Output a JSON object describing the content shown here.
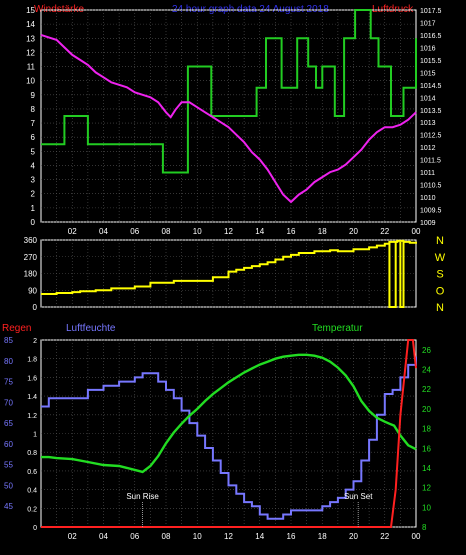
{
  "colors": {
    "background": "#000000",
    "frame": "#ffffff",
    "grid": "#555555",
    "tick_label": "#ffffff",
    "wind_speed": "#22cc22",
    "pressure": "#ee22ee",
    "direction": "#ffff00",
    "rain": "#ff2020",
    "humidity": "#7777ff",
    "temperature": "#22dd22",
    "title_left": "#ff2222",
    "title_center": "#3333ee",
    "title_right": "#ff2222"
  },
  "header": {
    "left": "Windstärke",
    "center": "24 hour graph data  24 August  2018",
    "right": "Luftdruck"
  },
  "x_ticks": [
    "02",
    "04",
    "06",
    "08",
    "10",
    "12",
    "14",
    "16",
    "18",
    "20",
    "22",
    "00"
  ],
  "chart_data": [
    {
      "id": "wind-pressure",
      "type": "line",
      "x_range": [
        0,
        24
      ],
      "left_axis": {
        "label": "Windstärke",
        "ylim": [
          0,
          15
        ],
        "ticks": [
          "0",
          "1",
          "2",
          "3",
          "4",
          "5",
          "6",
          "7",
          "8",
          "9",
          "10",
          "11",
          "12",
          "13",
          "14",
          "15"
        ]
      },
      "right_axis": {
        "label": "Luftdruck",
        "ylim": [
          1009,
          1017.5
        ],
        "ticks": [
          "1009",
          "1009.5",
          "1010",
          "1010.5",
          "1011",
          "1011.5",
          "1012",
          "1012.5",
          "1013",
          "1013.5",
          "1014",
          "1014.5",
          "1015",
          "1015.5",
          "1016",
          "1016.5",
          "1017",
          "1017.5"
        ]
      },
      "series": [
        {
          "name": "Windstärke",
          "axis": "left",
          "style": "step",
          "x": [
            0,
            1.5,
            3,
            4,
            5,
            6,
            7,
            7.8,
            9.4,
            10.9,
            12.5,
            13.8,
            14.4,
            15.4,
            16.4,
            17.1,
            17.6,
            18,
            18.8,
            19.4,
            20.1,
            21.1,
            21.6,
            22.4,
            23.2,
            24
          ],
          "y": [
            5.5,
            7.5,
            5.5,
            5.5,
            5.5,
            5.5,
            5.5,
            3.5,
            11,
            7.5,
            7.5,
            9.5,
            13,
            9.5,
            13,
            11,
            9.5,
            11,
            7.5,
            13,
            15,
            13,
            11,
            7.5,
            9.5,
            13
          ]
        },
        {
          "name": "Luftdruck",
          "axis": "right",
          "style": "line",
          "x": [
            0,
            0.5,
            1,
            1.5,
            2,
            2.5,
            3,
            3.5,
            4,
            4.5,
            5,
            5.5,
            6,
            6.5,
            7,
            7.5,
            8,
            8.3,
            8.6,
            9,
            9.5,
            10,
            10.5,
            11,
            11.5,
            12,
            12.5,
            13,
            13.5,
            14,
            14.5,
            15,
            15.5,
            16,
            16.5,
            17,
            17.5,
            18,
            18.5,
            19,
            19.5,
            20,
            20.5,
            21,
            21.5,
            22,
            22.5,
            23,
            23.5,
            24
          ],
          "y": [
            1016.5,
            1016.4,
            1016.3,
            1016.0,
            1015.7,
            1015.5,
            1015.3,
            1015.0,
            1014.8,
            1014.6,
            1014.5,
            1014.4,
            1014.2,
            1014.1,
            1014.0,
            1013.8,
            1013.4,
            1013.2,
            1013.5,
            1013.8,
            1013.8,
            1013.6,
            1013.4,
            1013.2,
            1013.0,
            1012.8,
            1012.5,
            1012.2,
            1011.8,
            1011.5,
            1011.1,
            1010.6,
            1010.1,
            1009.8,
            1010.1,
            1010.3,
            1010.6,
            1010.8,
            1011.0,
            1011.1,
            1011.3,
            1011.6,
            1011.9,
            1012.3,
            1012.6,
            1012.8,
            1012.8,
            1012.9,
            1013.1,
            1013.4
          ]
        }
      ]
    },
    {
      "id": "wind-direction",
      "type": "line",
      "x_range": [
        0,
        24
      ],
      "left_axis": {
        "ylim": [
          0,
          360
        ],
        "ticks": [
          "0",
          "90",
          "180",
          "270",
          "360"
        ]
      },
      "right_axis": {
        "ylim": [
          0,
          360
        ],
        "ticks": [
          "N",
          "W",
          "S",
          "O",
          "N"
        ]
      },
      "series": [
        {
          "name": "",
          "axis": "left",
          "style": "step",
          "x": [
            0,
            1,
            2,
            2.5,
            3.5,
            4.5,
            6,
            7,
            8.5,
            9,
            10,
            11,
            12,
            12.5,
            13,
            13.5,
            14,
            14.5,
            15,
            15.5,
            16,
            16.5,
            17.5,
            18.5,
            19,
            20,
            21,
            21.5,
            22,
            22.3,
            22.8,
            23.2,
            23.6,
            24
          ],
          "y": [
            70,
            75,
            80,
            85,
            90,
            100,
            110,
            130,
            140,
            140,
            140,
            160,
            190,
            200,
            210,
            220,
            230,
            240,
            255,
            270,
            280,
            290,
            300,
            305,
            300,
            310,
            320,
            330,
            340,
            350,
            355,
            350,
            345,
            340
          ]
        }
      ]
    },
    {
      "id": "rain-humidity-temp",
      "type": "line",
      "x_range": [
        0,
        24
      ],
      "top_labels": {
        "left": "Regen",
        "middle": "Luftfeuchte",
        "right": "Temperatur"
      },
      "annotations": [
        {
          "text": "Sun Rise",
          "x": 6.5
        },
        {
          "text": "Sun Set",
          "x": 20.3
        }
      ],
      "left_axis_rain": {
        "ylim": [
          0,
          2.0
        ],
        "ticks": [
          "0",
          "0.2",
          "0.4",
          "0.6",
          "0.8",
          "1",
          "1.2",
          "1.4",
          "1.6",
          "1.8",
          "2"
        ]
      },
      "left_axis_humidity": {
        "ylim": [
          40,
          85
        ],
        "ticks": [
          "45",
          "50",
          "55",
          "60",
          "65",
          "70",
          "75",
          "80",
          "85"
        ]
      },
      "right_axis": {
        "ylim": [
          8,
          27
        ],
        "ticks": [
          "8",
          "10",
          "12",
          "14",
          "16",
          "18",
          "20",
          "22",
          "24",
          "26"
        ]
      },
      "series": [
        {
          "name": "Luftfeuchte",
          "axis": "humidity",
          "style": "step",
          "x": [
            0,
            0.5,
            1,
            2,
            3,
            4,
            5,
            6,
            6.5,
            7,
            7.5,
            8,
            8.5,
            9,
            9.5,
            10,
            10.5,
            11,
            11.5,
            12,
            12.5,
            13,
            13.5,
            14,
            14.5,
            15,
            15.5,
            16,
            16.5,
            17,
            18,
            18.5,
            19,
            19.5,
            20,
            20.5,
            21,
            21.5,
            22,
            22.5,
            23,
            23.5,
            24
          ],
          "y": [
            69,
            71,
            71,
            71,
            73,
            74,
            75,
            76,
            77,
            77,
            75,
            73,
            71,
            68,
            65,
            62,
            59,
            56,
            53,
            50,
            48,
            46,
            45,
            43,
            42,
            42,
            43,
            44,
            44,
            44,
            45,
            46,
            47,
            49,
            51,
            56,
            61,
            67,
            72,
            73,
            76,
            79,
            81
          ]
        },
        {
          "name": "Temperatur",
          "axis": "right",
          "style": "line",
          "x": [
            0,
            0.5,
            1,
            2,
            3,
            4,
            5,
            5.5,
            6,
            6.5,
            7,
            7.5,
            8,
            8.5,
            9,
            9.5,
            10,
            10.5,
            11,
            11.5,
            12,
            12.5,
            13,
            13.5,
            14,
            14.5,
            15,
            15.5,
            16,
            16.5,
            17,
            17.5,
            18,
            18.5,
            19,
            19.5,
            20,
            20.5,
            21,
            21.5,
            22,
            22.3,
            22.6,
            23,
            23.5,
            24
          ],
          "y": [
            15.1,
            15.1,
            15.0,
            14.9,
            14.6,
            14.3,
            14.2,
            14.0,
            13.8,
            13.6,
            14.2,
            15.2,
            16.5,
            17.6,
            18.5,
            19.3,
            20.0,
            20.8,
            21.5,
            22.1,
            22.7,
            23.2,
            23.7,
            24.1,
            24.5,
            24.8,
            25.1,
            25.3,
            25.4,
            25.5,
            25.5,
            25.4,
            25.2,
            24.8,
            24.2,
            23.4,
            22.3,
            20.8,
            19.8,
            19.1,
            18.7,
            18.5,
            18.3,
            17.3,
            16.3,
            15.9
          ]
        },
        {
          "name": "Regen",
          "axis": "rain",
          "style": "line",
          "x": [
            0,
            19,
            20,
            21,
            22,
            22.4,
            22.7,
            23,
            23.5,
            23.8,
            24
          ],
          "y": [
            0,
            0,
            0,
            0,
            0,
            0,
            0.4,
            1.2,
            2.0,
            2.0,
            1.7
          ]
        }
      ]
    }
  ]
}
